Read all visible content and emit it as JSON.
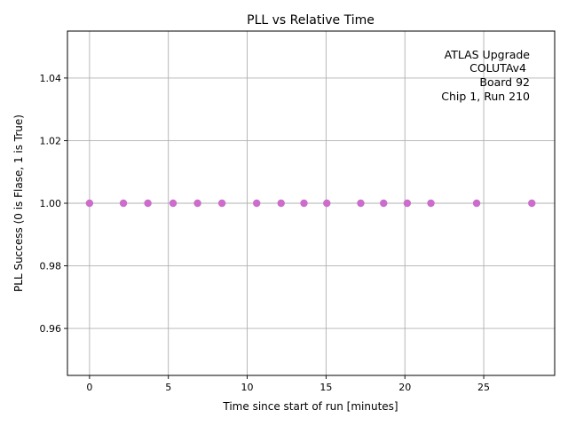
{
  "chart_data": {
    "type": "scatter",
    "title": "PLL vs Relative Time",
    "xlabel": "Time since start of run [minutes]",
    "ylabel": "PLL Success (0 is Flase, 1 is True)",
    "xlim": [
      -1.4,
      29.5
    ],
    "ylim": [
      0.945,
      1.055
    ],
    "x_ticks": [
      0,
      5,
      10,
      15,
      20,
      25
    ],
    "x_tick_labels": [
      "0",
      "5",
      "10",
      "15",
      "20",
      "25"
    ],
    "y_ticks": [
      0.96,
      0.98,
      1.0,
      1.02,
      1.04
    ],
    "y_tick_labels": [
      "0.96",
      "0.98",
      "1.00",
      "1.02",
      "1.04"
    ],
    "grid": true,
    "marker_color": "#cc6ccc",
    "annotation_lines": [
      "ATLAS Upgrade",
      "COLUTAv4",
      "Board 92",
      "Chip 1, Run 210"
    ],
    "annotation_placement": "top-right",
    "series": [
      {
        "x": [
          0,
          2.15,
          3.7,
          5.3,
          6.85,
          8.4,
          10.6,
          12.15,
          13.6,
          15.05,
          17.2,
          18.65,
          20.15,
          21.65,
          24.55,
          28.05
        ],
        "y": [
          1,
          1,
          1,
          1,
          1,
          1,
          1,
          1,
          1,
          1,
          1,
          1,
          1,
          1,
          1,
          1
        ]
      }
    ]
  }
}
